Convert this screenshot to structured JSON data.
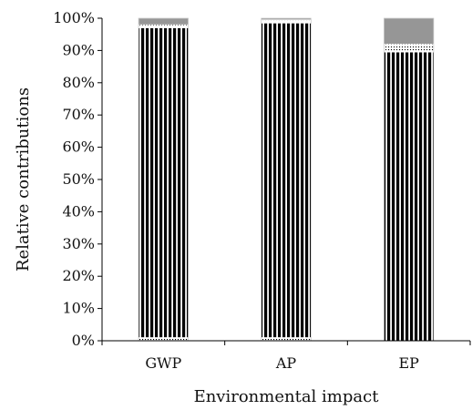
{
  "chart_data": {
    "type": "bar",
    "stacked": true,
    "stack_mode": "percent",
    "categories": [
      "GWP",
      "AP",
      "EP"
    ],
    "series": [
      {
        "pattern": "dotted",
        "color": "#ffffff",
        "values": [
          1.0,
          1.0,
          0.0
        ]
      },
      {
        "pattern": "vertical-stripes",
        "color": "#000000",
        "values": [
          96.0,
          97.5,
          89.5
        ]
      },
      {
        "pattern": "white",
        "color": "#ffffff",
        "values": [
          0.5,
          0.5,
          0.3
        ]
      },
      {
        "pattern": "dotted",
        "color": "#ffffff",
        "values": [
          0.5,
          0.5,
          2.2
        ]
      },
      {
        "pattern": "solid",
        "color": "#969696",
        "values": [
          2.0,
          0.5,
          8.0
        ]
      }
    ],
    "title": "",
    "xlabel": "Environmental impact",
    "ylabel": "Relative contributions",
    "ylim": [
      0,
      100
    ],
    "yticks": [
      0,
      10,
      20,
      30,
      40,
      50,
      60,
      70,
      80,
      90,
      100
    ],
    "ytick_labels": [
      "0%",
      "10%",
      "20%",
      "30%",
      "40%",
      "50%",
      "60%",
      "70%",
      "80%",
      "90%",
      "100%"
    ],
    "grid": false,
    "legend": "none"
  }
}
